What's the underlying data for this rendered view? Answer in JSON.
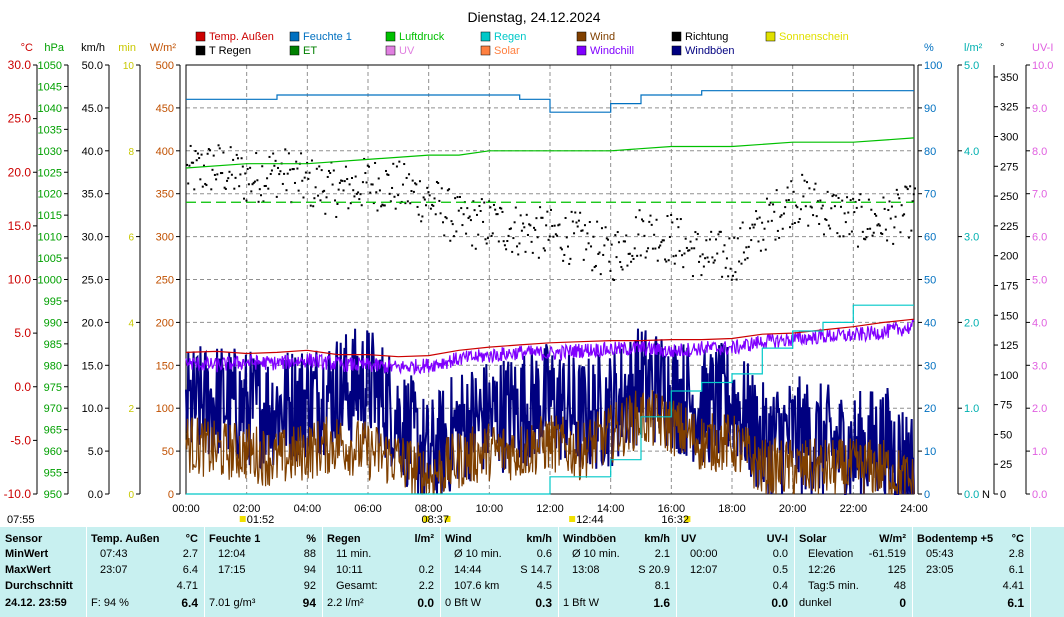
{
  "chart_data": {
    "type": "line",
    "title": "Dienstag, 24.12.2024",
    "x_ticks": [
      "00:00",
      "02:00",
      "04:00",
      "06:00",
      "08:00",
      "10:00",
      "12:00",
      "14:00",
      "16:00",
      "18:00",
      "20:00",
      "22:00",
      "24:00"
    ],
    "xlim": [
      0,
      24
    ],
    "left_axes": [
      {
        "unit": "°C",
        "color": "#cc0000",
        "ticks": [
          "30.0",
          "25.0",
          "20.0",
          "15.0",
          "10.0",
          "5.0",
          "0.0",
          "-5.0",
          "-10.0"
        ]
      },
      {
        "unit": "hPa",
        "color": "#00a000",
        "ticks": [
          "1050",
          "1045",
          "1040",
          "1035",
          "1030",
          "1025",
          "1020",
          "1015",
          "1010",
          "1005",
          "1000",
          "995",
          "990",
          "985",
          "980",
          "975",
          "970",
          "965",
          "960",
          "955",
          "950"
        ]
      },
      {
        "unit": "km/h",
        "color": "#000000",
        "ticks": [
          "50.0",
          "45.0",
          "40.0",
          "35.0",
          "30.0",
          "25.0",
          "20.0",
          "15.0",
          "10.0",
          "5.0",
          "0.0"
        ]
      },
      {
        "unit": "min",
        "color": "#c8c800",
        "ticks": [
          "10",
          "8",
          "6",
          "4",
          "2",
          "0"
        ]
      },
      {
        "unit": "W/m²",
        "color": "#c05000",
        "ticks": [
          "500",
          "450",
          "400",
          "350",
          "300",
          "250",
          "200",
          "150",
          "100",
          "50",
          "0"
        ]
      }
    ],
    "right_axes": [
      {
        "unit": "%",
        "color": "#0070c0",
        "ticks": [
          "100",
          "90",
          "80",
          "70",
          "60",
          "50",
          "40",
          "30",
          "20",
          "10",
          "0"
        ]
      },
      {
        "unit": "l/m²",
        "color": "#00b0b0",
        "ticks": [
          "5.0",
          "4.0",
          "3.0",
          "2.0",
          "1.0",
          "0.0"
        ]
      },
      {
        "unit": "°",
        "color": "#000000",
        "ticks": [
          "350",
          "325",
          "300",
          "275",
          "250",
          "225",
          "200",
          "175",
          "150",
          "125",
          "100",
          "75",
          "50",
          "25",
          "0"
        ],
        "extra": "N"
      },
      {
        "unit": "UV-I",
        "color": "#e060e0",
        "ticks": [
          "10.0",
          "9.0",
          "8.0",
          "7.0",
          "6.0",
          "5.0",
          "4.0",
          "3.0",
          "2.0",
          "1.0",
          "0.0"
        ]
      }
    ],
    "legend": [
      {
        "name": "Temp. Außen",
        "color": "#cc0000"
      },
      {
        "name": "Feuchte 1",
        "color": "#0070c0"
      },
      {
        "name": "Luftdruck",
        "color": "#00c000"
      },
      {
        "name": "Regen",
        "color": "#00c8c8"
      },
      {
        "name": "Wind",
        "color": "#804000"
      },
      {
        "name": "Richtung",
        "color": "#000000"
      },
      {
        "name": "Sonnenschein",
        "color": "#e0e000"
      },
      {
        "name": "T Regen",
        "color": "#000000"
      },
      {
        "name": "ET",
        "color": "#008000"
      },
      {
        "name": "UV",
        "color": "#e080e0"
      },
      {
        "name": "Solar",
        "color": "#ff8040"
      },
      {
        "name": "Windchill",
        "color": "#8000ff"
      },
      {
        "name": "Windböen",
        "color": "#000080"
      }
    ],
    "markers": [
      {
        "label": "07:55",
        "x": 7.92
      },
      {
        "label": "01:52",
        "x": 1.87
      },
      {
        "label": "08:37",
        "x": 8.62
      },
      {
        "label": "12:44",
        "x": 12.73
      },
      {
        "label": "16:32",
        "x": 16.53
      }
    ],
    "series": [
      {
        "name": "Temp. Außen",
        "unit": "°C",
        "x": [
          0,
          1,
          2,
          3,
          4,
          5,
          6,
          7,
          8,
          9,
          10,
          11,
          12,
          13,
          14,
          15,
          16,
          17,
          18,
          19,
          20,
          21,
          22,
          23,
          24
        ],
        "y": [
          3.2,
          3.3,
          3.1,
          3.2,
          3.4,
          3.0,
          3.0,
          2.8,
          2.9,
          3.4,
          3.7,
          3.9,
          4.1,
          4.2,
          4.3,
          4.3,
          4.4,
          4.4,
          4.5,
          4.9,
          5.0,
          5.3,
          5.6,
          6.0,
          6.3
        ]
      },
      {
        "name": "Feuchte 1",
        "unit": "%",
        "x": [
          0,
          2,
          3,
          4,
          6,
          8,
          10,
          11,
          12,
          13,
          14,
          15,
          16,
          17,
          18,
          20,
          22,
          24
        ],
        "y": [
          92,
          92,
          93,
          93,
          93,
          93,
          93,
          92,
          89,
          89,
          91,
          93,
          93,
          94,
          94,
          94,
          94,
          94
        ]
      },
      {
        "name": "Luftdruck",
        "unit": "hPa",
        "x": [
          0,
          2,
          4,
          6,
          8,
          9,
          10,
          12,
          14,
          16,
          18,
          20,
          22,
          24
        ],
        "y": [
          1026,
          1027,
          1027,
          1028,
          1029,
          1029,
          1030,
          1030,
          1030,
          1031,
          1031,
          1032,
          1032,
          1033
        ]
      },
      {
        "name": "Regen",
        "unit": "l/m²",
        "x": [
          0,
          10,
          12,
          14,
          15,
          16,
          17,
          18,
          19,
          20,
          21,
          22,
          24
        ],
        "y": [
          0,
          0,
          0.2,
          0.4,
          0.9,
          1.2,
          1.3,
          1.4,
          1.7,
          1.9,
          2.0,
          2.2,
          2.2
        ]
      },
      {
        "name": "Windchill",
        "unit": "°C",
        "x": [
          0,
          1,
          2,
          3,
          4,
          5,
          6,
          7,
          8,
          9,
          10,
          11,
          12,
          13,
          14,
          15,
          16,
          17,
          18,
          19,
          20,
          21,
          22,
          23,
          24
        ],
        "y": [
          2.2,
          2.0,
          2.3,
          2.2,
          2.5,
          2.1,
          2.0,
          1.8,
          2.0,
          2.6,
          2.9,
          3.2,
          3.1,
          3.4,
          3.5,
          3.6,
          3.3,
          3.6,
          3.6,
          4.2,
          4.4,
          4.7,
          4.8,
          5.1,
          5.6
        ]
      },
      {
        "name": "Richtung",
        "unit": "°",
        "x": [
          0,
          1,
          2,
          3,
          4,
          5,
          6,
          7,
          8,
          9,
          10,
          11,
          12,
          13,
          14,
          15,
          16,
          17,
          18,
          19,
          20,
          21,
          22,
          23,
          24
        ],
        "y": [
          270,
          275,
          265,
          272,
          262,
          255,
          262,
          258,
          248,
          228,
          228,
          222,
          218,
          215,
          200,
          222,
          215,
          200,
          200,
          225,
          250,
          240,
          230,
          230,
          240
        ]
      },
      {
        "name": "Windböen",
        "unit": "km/h",
        "x": [
          0,
          1,
          2,
          3,
          4,
          5,
          6,
          7,
          8,
          9,
          10,
          11,
          12,
          13,
          14,
          15,
          16,
          17,
          18,
          19,
          20,
          21,
          22,
          23,
          24
        ],
        "y": [
          10,
          11,
          10,
          10,
          11,
          12,
          13,
          9,
          4,
          8,
          9,
          10,
          11,
          9,
          10,
          13,
          12,
          10,
          11,
          6,
          7,
          6,
          5,
          6,
          3
        ]
      },
      {
        "name": "Wind",
        "unit": "km/h",
        "x": [
          0,
          1,
          2,
          3,
          4,
          5,
          6,
          7,
          8,
          9,
          10,
          11,
          12,
          13,
          14,
          15,
          16,
          17,
          18,
          19,
          20,
          21,
          22,
          23,
          24
        ],
        "y": [
          6,
          5,
          5,
          4,
          5,
          6,
          5,
          4,
          2,
          4,
          5,
          5,
          6,
          5,
          7,
          9,
          8,
          6,
          6,
          3,
          3,
          3,
          3,
          3,
          1
        ]
      }
    ]
  },
  "table": {
    "sensor": {
      "header": "Sensor",
      "rows": [
        "MinWert",
        "MaxWert",
        "Durchschnitt",
        "24.12. 23:59"
      ]
    },
    "temp": {
      "header": "Temp. Außen",
      "unit": "°C",
      "rows": [
        [
          "07:43",
          "2.7"
        ],
        [
          "23:07",
          "6.4"
        ],
        [
          "",
          "4.71"
        ],
        [
          "F: 94 %",
          "6.4"
        ]
      ]
    },
    "feuchte": {
      "header": "Feuchte 1",
      "unit": "%",
      "rows": [
        [
          "12:04",
          "88"
        ],
        [
          "17:15",
          "94"
        ],
        [
          "",
          "92"
        ],
        [
          "7.01 g/m³",
          "94"
        ]
      ]
    },
    "regen": {
      "header": "Regen",
      "unit": "l/m²",
      "rows": [
        [
          "11 min.",
          ""
        ],
        [
          "10:11",
          "0.2"
        ],
        [
          "Gesamt:",
          "2.2"
        ],
        [
          "2.2 l/m²",
          "0.0"
        ]
      ]
    },
    "wind": {
      "header": "Wind",
      "unit": "km/h",
      "rows": [
        [
          "Ø 10 min.",
          "0.6"
        ],
        [
          "14:44",
          "S 14.7"
        ],
        [
          "107.6 km",
          "4.5"
        ],
        [
          "0 Bft W",
          "0.3"
        ]
      ]
    },
    "boeen": {
      "header": "Windböen",
      "unit": "km/h",
      "rows": [
        [
          "Ø 10 min.",
          "2.1"
        ],
        [
          "13:08",
          "S 20.9"
        ],
        [
          "",
          "8.1"
        ],
        [
          "1 Bft W",
          "1.6"
        ]
      ]
    },
    "uv": {
      "header": "UV",
      "unit": "UV-I",
      "rows": [
        [
          "00:00",
          "0.0"
        ],
        [
          "12:07",
          "0.5"
        ],
        [
          "",
          "0.4"
        ],
        [
          "",
          "0.0"
        ]
      ]
    },
    "solar": {
      "header": "Solar",
      "unit": "W/m²",
      "rows": [
        [
          "Elevation",
          "-61.519"
        ],
        [
          "12:26",
          "125"
        ],
        [
          "Tag:5 min.",
          "48"
        ],
        [
          "dunkel",
          "0"
        ]
      ]
    },
    "boden": {
      "header": "Bodentemp +5",
      "unit": "°C",
      "rows": [
        [
          "05:43",
          "2.8"
        ],
        [
          "23:05",
          "6.1"
        ],
        [
          "",
          "4.41"
        ],
        [
          "",
          "6.1"
        ]
      ]
    }
  }
}
